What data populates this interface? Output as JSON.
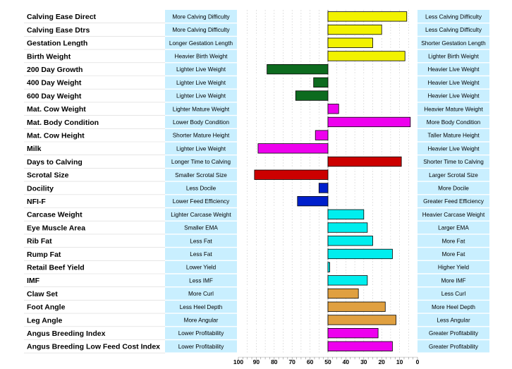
{
  "chart_data": {
    "type": "bar",
    "orientation": "horizontal",
    "x_axis_reversed": true,
    "xlim": [
      100,
      0
    ],
    "midpoint": 50,
    "xticks": [
      100,
      90,
      80,
      70,
      60,
      50,
      40,
      30,
      20,
      10,
      0
    ],
    "grid": true,
    "traits": [
      {
        "name": "Calving Ease Direct",
        "left_label": "More Calving Difficulty",
        "right_label": "Less Calving Difficulty",
        "value": 6,
        "color": "#f2f200"
      },
      {
        "name": "Calving Ease Dtrs",
        "left_label": "More Calving Difficulty",
        "right_label": "Less Calving Difficulty",
        "value": 20,
        "color": "#f2f200"
      },
      {
        "name": "Gestation Length",
        "left_label": "Longer Gestation Length",
        "right_label": "Shorter Gestation Length",
        "value": 25,
        "color": "#f2f200"
      },
      {
        "name": "Birth Weight",
        "left_label": "Heavier Birth Weight",
        "right_label": "Lighter Birth Weight",
        "value": 7,
        "color": "#f2f200"
      },
      {
        "name": "200 Day Growth",
        "left_label": "Lighter Live Weight",
        "right_label": "Heavier Live Weight",
        "value": 84,
        "color": "#0d6b1f"
      },
      {
        "name": "400 Day Weight",
        "left_label": "Lighter Live Weight",
        "right_label": "Heavier Live Weight",
        "value": 58,
        "color": "#0d6b1f"
      },
      {
        "name": "600 Day Weight",
        "left_label": "Lighter Live Weight",
        "right_label": "Heavier Live Weight",
        "value": 68,
        "color": "#0d6b1f"
      },
      {
        "name": "Mat. Cow Weight",
        "left_label": "Lighter Mature Weight",
        "right_label": "Heavier Mature Weight",
        "value": 44,
        "color": "#ee00ee"
      },
      {
        "name": "Mat. Body Condition",
        "left_label": "Lower Body Condition",
        "right_label": "More Body Condition",
        "value": 4,
        "color": "#ee00ee"
      },
      {
        "name": "Mat. Cow Height",
        "left_label": "Shorter Mature Height",
        "right_label": "Taller Mature Height",
        "value": 57,
        "color": "#ee00ee"
      },
      {
        "name": "Milk",
        "left_label": "Lighter Live Weight",
        "right_label": "Heavier Live Weight",
        "value": 89,
        "color": "#ee00ee"
      },
      {
        "name": "Days to Calving",
        "left_label": "Longer Time to Calving",
        "right_label": "Shorter Time to Calving",
        "value": 9,
        "color": "#cc0000"
      },
      {
        "name": "Scrotal Size",
        "left_label": "Smaller Scrotal Size",
        "right_label": "Larger Scrotal Size",
        "value": 91,
        "color": "#cc0000"
      },
      {
        "name": "Docility",
        "left_label": "Less Docile",
        "right_label": "More Docile",
        "value": 55,
        "color": "#0020cc"
      },
      {
        "name": "NFI-F",
        "left_label": "Lower Feed Efficiency",
        "right_label": "Greater Feed Efficiency",
        "value": 67,
        "color": "#0020cc"
      },
      {
        "name": "Carcase Weight",
        "left_label": "Lighter Carcase Weight",
        "right_label": "Heavier Carcase Weight",
        "value": 30,
        "color": "#00eeee"
      },
      {
        "name": "Eye Muscle Area",
        "left_label": "Smaller EMA",
        "right_label": "Larger EMA",
        "value": 28,
        "color": "#00eeee"
      },
      {
        "name": "Rib Fat",
        "left_label": "Less Fat",
        "right_label": "More Fat",
        "value": 25,
        "color": "#00eeee"
      },
      {
        "name": "Rump Fat",
        "left_label": "Less Fat",
        "right_label": "More Fat",
        "value": 14,
        "color": "#00eeee"
      },
      {
        "name": "Retail Beef Yield",
        "left_label": "Lower Yield",
        "right_label": "Higher Yield",
        "value": 49,
        "color": "#00eeee"
      },
      {
        "name": "IMF",
        "left_label": "Less IMF",
        "right_label": "More IMF",
        "value": 28,
        "color": "#00eeee"
      },
      {
        "name": "Claw Set",
        "left_label": "More Curl",
        "right_label": "Less Curl",
        "value": 33,
        "color": "#e0a040"
      },
      {
        "name": "Foot Angle",
        "left_label": "Less Heel Depth",
        "right_label": "More Heel Depth",
        "value": 18,
        "color": "#e0a040"
      },
      {
        "name": "Leg Angle",
        "left_label": "More Angular",
        "right_label": "Less Angular",
        "value": 12,
        "color": "#e0a040"
      },
      {
        "name": "Angus Breeding Index",
        "left_label": "Lower Profitability",
        "right_label": "Greater Profitability",
        "value": 22,
        "color": "#ee00ee"
      },
      {
        "name": "Angus Breeding Low Feed Cost Index",
        "left_label": "Lower Profitability",
        "right_label": "Greater Profitability",
        "value": 14,
        "color": "#ee00ee"
      }
    ]
  }
}
